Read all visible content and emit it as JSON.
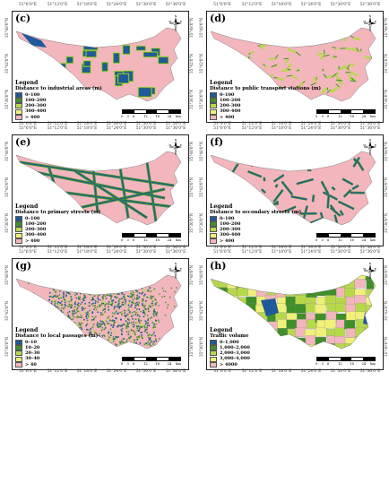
{
  "lon_labels": [
    "51°6'0\"E",
    "51°12'0\"E",
    "51°18'0\"E",
    "51°24'0\"E",
    "51°30'0\"E",
    "51°36'0\"E"
  ],
  "lat_labels": [
    "35°48'0\"N",
    "35°42'0\"N",
    "35°36'0\"N"
  ],
  "scale": {
    "ticks": [
      "0",
      "3",
      "6",
      "12",
      "18",
      "24"
    ],
    "unit": "km"
  },
  "north": {
    "n": "N",
    "s": "S",
    "e": "E",
    "w": "W"
  },
  "colors": {
    "pink": "#f2b6bc",
    "blue": "#1f5a9a",
    "green": "#3f8f2a",
    "lime": "#b8d84c",
    "yellow": "#f0f07a"
  },
  "panels": [
    {
      "label": "(c)",
      "legend_title": "Legend",
      "legend_sub": "Distance to industrial areas (m)",
      "items": [
        {
          "text": "0–100",
          "color": "#1f5a9a"
        },
        {
          "text": "100–200",
          "color": "#3f8f2a"
        },
        {
          "text": "200–300",
          "color": "#b8d84c"
        },
        {
          "text": "300–400",
          "color": "#f0f07a"
        },
        {
          "text": "> 400",
          "color": "#f2b6bc"
        }
      ]
    },
    {
      "label": "(d)",
      "legend_title": "Legend",
      "legend_sub": "Distance to public transport stations (m)",
      "items": [
        {
          "text": "0–100",
          "color": "#1f5a9a"
        },
        {
          "text": "100–200",
          "color": "#3f8f2a"
        },
        {
          "text": "200–300",
          "color": "#b8d84c"
        },
        {
          "text": "300–400",
          "color": "#f0f07a"
        },
        {
          "text": "> 400",
          "color": "#f2b6bc"
        }
      ]
    },
    {
      "label": "(e)",
      "legend_title": "Legend",
      "legend_sub": "Distance to primary streets (m)",
      "items": [
        {
          "text": "0–100",
          "color": "#1f5a9a"
        },
        {
          "text": "100–200",
          "color": "#3f8f2a"
        },
        {
          "text": "200–300",
          "color": "#b8d84c"
        },
        {
          "text": "300–400",
          "color": "#f0f07a"
        },
        {
          "text": "> 400",
          "color": "#f2b6bc"
        }
      ]
    },
    {
      "label": "(f)",
      "legend_title": "Legend",
      "legend_sub": "Distance to secondary streets (m)",
      "items": [
        {
          "text": "0–100",
          "color": "#1f5a9a"
        },
        {
          "text": "100–200",
          "color": "#3f8f2a"
        },
        {
          "text": "200–300",
          "color": "#b8d84c"
        },
        {
          "text": "300–400",
          "color": "#f0f07a"
        },
        {
          "text": "> 400",
          "color": "#f2b6bc"
        }
      ]
    },
    {
      "label": "(g)",
      "legend_title": "Legend",
      "legend_sub": "Distance to local passages (m)",
      "items": [
        {
          "text": "0–10",
          "color": "#1f5a9a"
        },
        {
          "text": "10–20",
          "color": "#3f8f2a"
        },
        {
          "text": "20–30",
          "color": "#b8d84c"
        },
        {
          "text": "30–40",
          "color": "#f0f07a"
        },
        {
          "text": "> 40",
          "color": "#f2b6bc"
        }
      ]
    },
    {
      "label": "(h)",
      "legend_title": "Legend",
      "legend_sub": "Traffic volume",
      "items": [
        {
          "text": "0–1,000",
          "color": "#1f5a9a"
        },
        {
          "text": "1,000–2,000",
          "color": "#3f8f2a"
        },
        {
          "text": "2,000–3,000",
          "color": "#b8d84c"
        },
        {
          "text": "3,000–4,000",
          "color": "#f0f07a"
        },
        {
          "text": "> 4000",
          "color": "#f2b6bc"
        }
      ]
    }
  ]
}
